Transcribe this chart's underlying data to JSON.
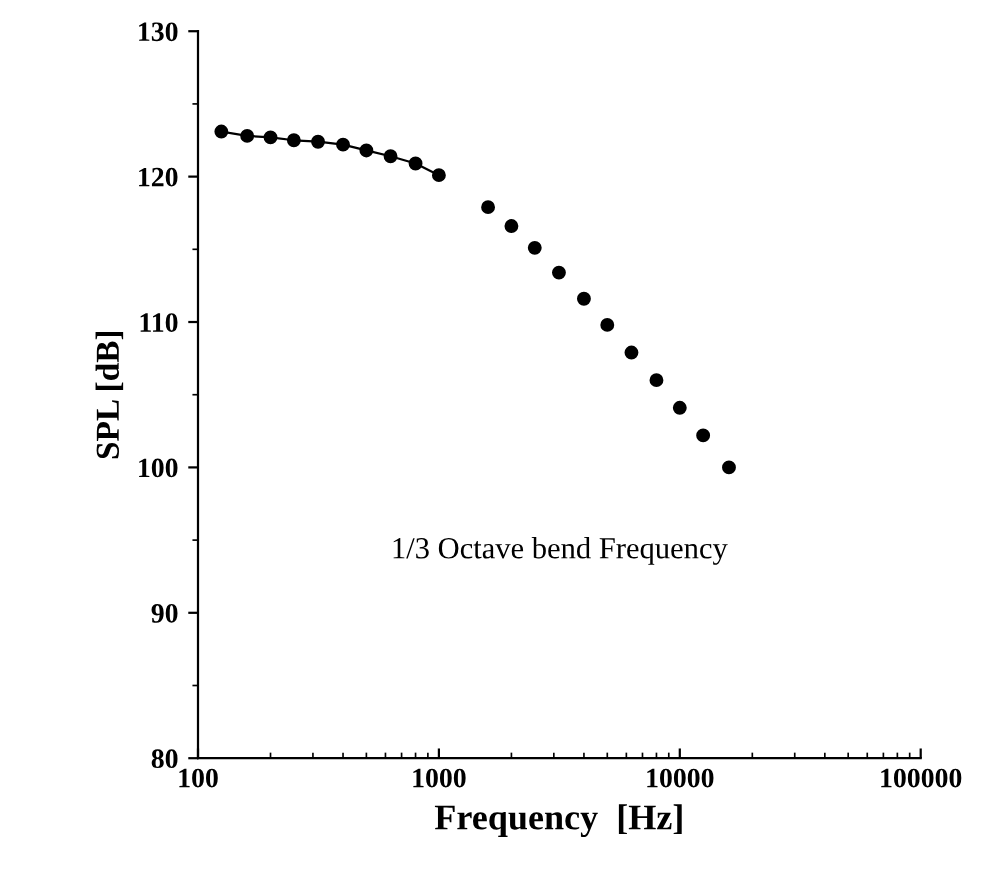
{
  "chart_data": {
    "type": "scatter",
    "xlabel": "Frequency  [Hz]",
    "ylabel": "SPL [dB]",
    "annotations": [
      "1/3 Octave bend Frequency"
    ],
    "series": [
      {
        "type": "line",
        "color": "#000000",
        "x": [
          125,
          160,
          200,
          250,
          315,
          400,
          500,
          630,
          800,
          1000
        ],
        "values": [
          123.1,
          122.8,
          122.7,
          122.5,
          122.4,
          122.2,
          121.8,
          121.4,
          120.9,
          120.1
        ]
      },
      {
        "color": "#000000",
        "x": [
          1600,
          2000,
          2500,
          3150,
          4000,
          5000,
          6300,
          8000,
          10000,
          12500,
          16000
        ],
        "values": [
          117.9,
          116.6,
          115.1,
          113.4,
          111.6,
          109.8,
          107.9,
          106.0,
          104.1,
          102.2,
          100.0
        ]
      }
    ],
    "log": "x",
    "xlim": [
      100,
      100000
    ],
    "xticks": [
      100,
      1000,
      10000,
      100000
    ],
    "ylim": [
      80,
      130
    ],
    "yticks": [
      80,
      90,
      100,
      110,
      120,
      130
    ],
    "marker": "circle",
    "grid": false,
    "legend": false
  }
}
